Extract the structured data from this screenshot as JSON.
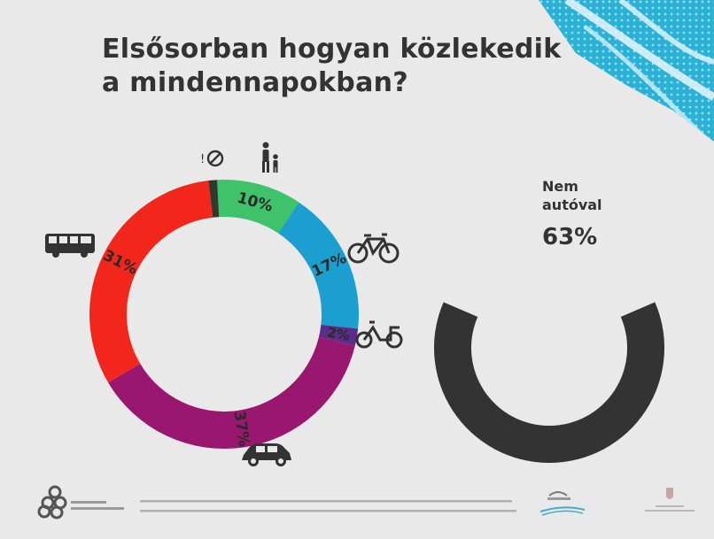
{
  "title": {
    "line1": "Elsősorban hogyan közlekedik",
    "line2": "a mindennapokban?"
  },
  "colors": {
    "background": "#e9e9e9",
    "text": "#333333",
    "walk": "#3ec26a",
    "bike": "#1b9fcf",
    "moped": "#5b2d8a",
    "car": "#99176f",
    "bus": "#f2261b",
    "none": "#2e3a2e",
    "not_by_car": "#333333",
    "accent_pattern": "#29b1d6"
  },
  "chart_data": [
    {
      "type": "pie",
      "title": "",
      "donut": true,
      "slices": [
        {
          "label": "10%",
          "value": 10,
          "icon": "pedestrian-icon",
          "color": "#3ec26a"
        },
        {
          "label": "17%",
          "value": 17,
          "icon": "bicycle-icon",
          "color": "#1b9fcf"
        },
        {
          "label": "2%",
          "value": 2,
          "icon": "moped-icon",
          "color": "#5b2d8a"
        },
        {
          "label": "37%",
          "value": 37,
          "icon": "car-icon",
          "color": "#99176f"
        },
        {
          "label": "31%",
          "value": 31,
          "icon": "bus-icon",
          "color": "#f2261b"
        },
        {
          "label": "",
          "value": 1,
          "icon": "no-travel-icon",
          "color": "#2e3a2e"
        }
      ]
    },
    {
      "type": "pie",
      "donut": true,
      "partial_arc": true,
      "label_line1": "Nem",
      "label_line2": "autóval",
      "value_label": "63%",
      "value": 63,
      "color": "#333333"
    }
  ],
  "footer": {
    "logos": [
      "mobility-logo",
      "shell-logo",
      "government-crest-logo"
    ]
  }
}
